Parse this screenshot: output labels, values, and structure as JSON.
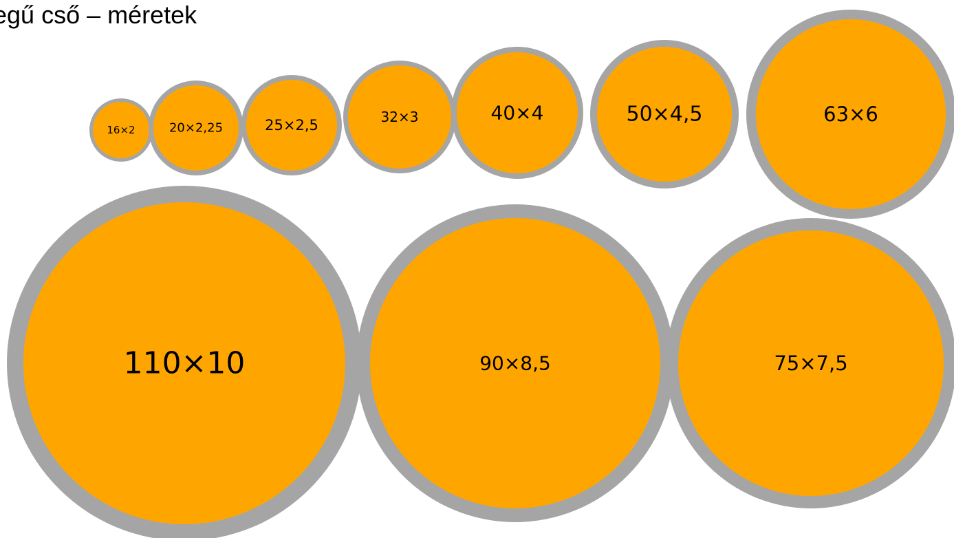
{
  "title": "egű cső – méretek",
  "colors": {
    "pipe_fill": "#FFA500",
    "pipe_wall": "#A5A5A5",
    "label": "#000000"
  },
  "pipes": [
    {
      "label": "16×2"
    },
    {
      "label": "20×2,25"
    },
    {
      "label": "25×2,5"
    },
    {
      "label": "32×3"
    },
    {
      "label": "40×4"
    },
    {
      "label": "50×4,5"
    },
    {
      "label": "63×6"
    },
    {
      "label": "110×10"
    },
    {
      "label": "90×8,5"
    },
    {
      "label": "75×7,5"
    }
  ]
}
